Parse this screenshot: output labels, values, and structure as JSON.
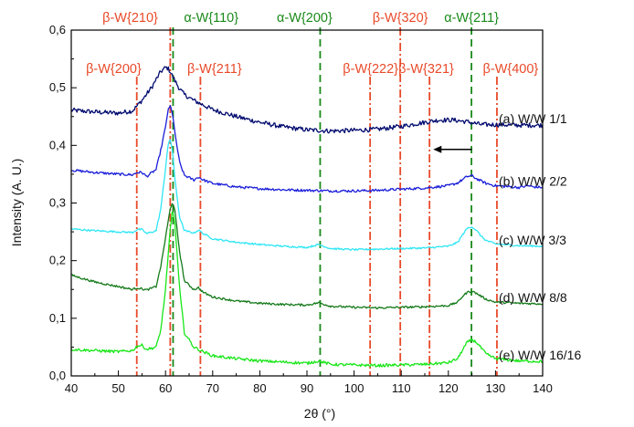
{
  "chart_data": {
    "type": "line",
    "xlabel": "2θ (°)",
    "ylabel": "Intensity (A. U.)",
    "xlim": [
      40,
      140
    ],
    "ylim": [
      0.0,
      0.6
    ],
    "xticks": [
      40,
      50,
      60,
      70,
      80,
      90,
      100,
      110,
      120,
      130,
      140
    ],
    "yticks": [
      "0,0",
      "0,1",
      "0,2",
      "0,3",
      "0,4",
      "0,5",
      "0,6"
    ],
    "grid": false,
    "reference_lines": [
      {
        "label": "β-W{200}",
        "x": 53.9,
        "phase": "beta",
        "row": "lower",
        "label_x": 49
      },
      {
        "label": "β-W{210}",
        "x": 61.0,
        "phase": "beta",
        "row": "upper",
        "label_x": 52.5
      },
      {
        "label": "α-W{110}",
        "x": 61.6,
        "phase": "alpha",
        "row": "upper",
        "label_x": 69.7
      },
      {
        "label": "β-W{211}",
        "x": 67.4,
        "phase": "beta",
        "row": "lower",
        "label_x": 70.4
      },
      {
        "label": "α-W{200}",
        "x": 92.8,
        "phase": "alpha",
        "row": "upper",
        "label_x": 89.5
      },
      {
        "label": "β-W{222}",
        "x": 103.4,
        "phase": "beta",
        "row": "lower",
        "label_x": 103.5
      },
      {
        "label": "β-W{320}",
        "x": 109.8,
        "phase": "beta",
        "row": "upper",
        "label_x": 109.8
      },
      {
        "label": "β-W{321}",
        "x": 116.0,
        "phase": "beta",
        "row": "lower",
        "label_x": 115.3
      },
      {
        "label": "α-W{211}",
        "x": 124.9,
        "phase": "alpha",
        "row": "upper",
        "label_x": 124.9
      },
      {
        "label": "β-W{400}",
        "x": 130.3,
        "phase": "beta",
        "row": "lower",
        "label_x": 133.2
      }
    ],
    "series": [
      {
        "name": "(a) W/W 1/1",
        "color": "#000a6e",
        "noise": 0.004,
        "x": [
          40,
          45,
          50,
          53,
          55,
          57,
          58,
          59,
          60,
          60.5,
          61,
          62,
          63,
          64,
          66,
          68,
          70,
          75,
          80,
          85,
          90,
          95,
          100,
          105,
          110,
          115,
          118,
          121,
          124,
          127,
          130,
          135,
          140
        ],
        "y": [
          0.461,
          0.458,
          0.456,
          0.46,
          0.478,
          0.5,
          0.514,
          0.528,
          0.535,
          0.534,
          0.528,
          0.512,
          0.498,
          0.488,
          0.478,
          0.47,
          0.462,
          0.45,
          0.44,
          0.432,
          0.427,
          0.425,
          0.426,
          0.428,
          0.433,
          0.44,
          0.444,
          0.444,
          0.441,
          0.436,
          0.436,
          0.435,
          0.435
        ]
      },
      {
        "name": "(b) W/W 2/2",
        "color": "#1a1ed8",
        "noise": 0.0022,
        "x": [
          40,
          45,
          50,
          53,
          54,
          55,
          56,
          58,
          59,
          60,
          60.5,
          61,
          61.5,
          62,
          63,
          64,
          66,
          67,
          68,
          70,
          75,
          80,
          85,
          90,
          95,
          100,
          105,
          110,
          115,
          120,
          122,
          124,
          125,
          126,
          128,
          130,
          135,
          137,
          138,
          140
        ],
        "y": [
          0.357,
          0.353,
          0.35,
          0.349,
          0.353,
          0.353,
          0.346,
          0.358,
          0.392,
          0.432,
          0.46,
          0.468,
          0.455,
          0.42,
          0.37,
          0.348,
          0.34,
          0.345,
          0.34,
          0.334,
          0.328,
          0.325,
          0.323,
          0.322,
          0.321,
          0.321,
          0.322,
          0.324,
          0.326,
          0.33,
          0.335,
          0.346,
          0.347,
          0.342,
          0.334,
          0.33,
          0.327,
          0.33,
          0.328,
          0.327
        ]
      },
      {
        "name": "(c) W/W 3/3",
        "color": "#2ee6f5",
        "noise": 0.0015,
        "x": [
          40,
          45,
          50,
          53,
          54,
          55,
          56,
          58,
          59,
          60,
          60.5,
          61,
          61.5,
          62,
          63,
          64,
          66,
          67,
          68,
          70,
          75,
          80,
          85,
          90,
          92.5,
          95,
          100,
          105,
          110,
          115,
          120,
          122,
          123,
          124,
          125,
          126,
          127,
          128,
          130,
          135,
          140
        ],
        "y": [
          0.255,
          0.252,
          0.25,
          0.249,
          0.254,
          0.254,
          0.247,
          0.252,
          0.29,
          0.36,
          0.4,
          0.41,
          0.39,
          0.34,
          0.275,
          0.252,
          0.248,
          0.253,
          0.247,
          0.238,
          0.232,
          0.228,
          0.225,
          0.223,
          0.228,
          0.221,
          0.219,
          0.22,
          0.221,
          0.222,
          0.225,
          0.232,
          0.245,
          0.256,
          0.259,
          0.252,
          0.242,
          0.235,
          0.229,
          0.226,
          0.225
        ]
      },
      {
        "name": "(d) W/W 8/8",
        "color": "#157a1a",
        "noise": 0.0018,
        "x": [
          40,
          42,
          45,
          50,
          53,
          54,
          55,
          56,
          58,
          59,
          60,
          61,
          61.5,
          62,
          63,
          64,
          66,
          67,
          68,
          70,
          75,
          80,
          85,
          90,
          92.5,
          95,
          100,
          105,
          110,
          115,
          120,
          122,
          123,
          124,
          125,
          126,
          127,
          128,
          130,
          135,
          140
        ],
        "y": [
          0.175,
          0.17,
          0.163,
          0.155,
          0.15,
          0.153,
          0.151,
          0.149,
          0.155,
          0.19,
          0.24,
          0.29,
          0.302,
          0.285,
          0.215,
          0.165,
          0.15,
          0.153,
          0.145,
          0.137,
          0.13,
          0.126,
          0.124,
          0.123,
          0.127,
          0.121,
          0.119,
          0.118,
          0.119,
          0.12,
          0.122,
          0.128,
          0.138,
          0.145,
          0.147,
          0.143,
          0.138,
          0.133,
          0.128,
          0.126,
          0.125
        ]
      },
      {
        "name": "(e) W/W 16/16",
        "color": "#19e619",
        "noise": 0.0025,
        "x": [
          40,
          45,
          50,
          53,
          54,
          55,
          56,
          58,
          59,
          60,
          61,
          61.5,
          62,
          63,
          64,
          66,
          68,
          70,
          75,
          80,
          85,
          90,
          92.5,
          95,
          100,
          105,
          110,
          115,
          120,
          122,
          123,
          124,
          125,
          126,
          127,
          128,
          130,
          135,
          140
        ],
        "y": [
          0.046,
          0.044,
          0.042,
          0.044,
          0.052,
          0.053,
          0.046,
          0.05,
          0.08,
          0.15,
          0.255,
          0.29,
          0.262,
          0.15,
          0.075,
          0.05,
          0.042,
          0.035,
          0.03,
          0.026,
          0.024,
          0.022,
          0.026,
          0.02,
          0.019,
          0.018,
          0.019,
          0.02,
          0.023,
          0.03,
          0.045,
          0.058,
          0.063,
          0.058,
          0.048,
          0.038,
          0.03,
          0.026,
          0.025
        ]
      }
    ],
    "annotations": [
      {
        "type": "arrow",
        "direction": "left",
        "from": [
          125.0,
          0.393
        ],
        "to": [
          116.8,
          0.393
        ],
        "color": "#000000"
      }
    ]
  }
}
